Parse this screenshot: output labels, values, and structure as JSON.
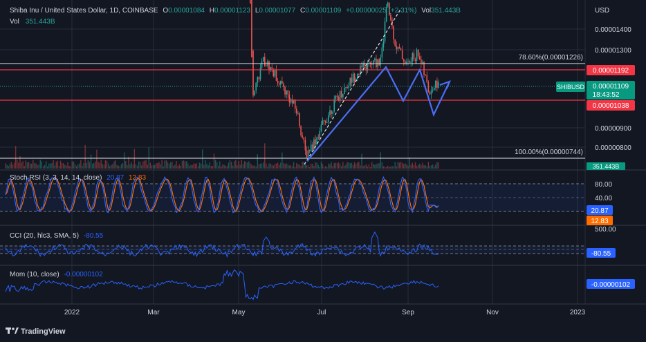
{
  "header": {
    "symbol": "Shiba Inu / United States Dollar, 1D, COINBASE",
    "open_label": "O",
    "open": "0.00001084",
    "high_label": "H",
    "high": "0.00001123",
    "low_label": "L",
    "low": "0.00001077",
    "close_label": "C",
    "close": "0.00001109",
    "change": "+0.00000025 (+2.31%)",
    "vol_label": "Vol",
    "vol": "351.443B",
    "vol_row_label": "Vol",
    "vol_row_value": "351.443B"
  },
  "price_axis": {
    "unit": "USD",
    "ticks": [
      "0.00001400",
      "0.00001300",
      "0.00000900",
      "0.00000800"
    ]
  },
  "levels": {
    "fib_786_label": "78.60%(0.00001226)",
    "fib_100_label": "100.00%(0.00000744)",
    "resistance_tag": "0.00001192",
    "support_tag": "0.00001038",
    "symbol_tag": "SHIBUSD",
    "price_tag": "0.00001109",
    "countdown": "18:43:52",
    "volume_tag": "351.443B"
  },
  "indicators": {
    "stoch": {
      "title": "Stoch RSI (3, 3, 14, 14, close)",
      "k": "20.87",
      "d": "12.83",
      "axis": [
        "80.00",
        "40.00"
      ],
      "k_tag": "20.87",
      "d_tag": "12.83"
    },
    "cci": {
      "title": "CCI (20, hlc3, SMA, 5)",
      "value": "-80.55",
      "axis": [
        "500.00"
      ],
      "tag": "-80.55"
    },
    "mom": {
      "title": "Mom (10, close)",
      "value": "-0.00000102",
      "tag": "-0.00000102"
    }
  },
  "time_axis": [
    "2022",
    "Mar",
    "May",
    "Jul",
    "Sep",
    "Nov",
    "2023"
  ],
  "branding": {
    "logo_text": "TradingView"
  },
  "colors": {
    "background": "#131722",
    "up": "#26a69a",
    "down": "#ef5350",
    "stoch_k": "#2962ff",
    "stoch_d": "#ff6d00",
    "cci": "#2962ff",
    "pattern": "#4c6ef5",
    "tag_red": "#f23645",
    "tag_green": "#089981",
    "tag_blue": "#2962ff",
    "tag_orange": "#f7525f"
  },
  "chart_data": {
    "type": "candlestick",
    "title": "Shiba Inu / United States Dollar, 1D, COINBASE",
    "x_domain": [
      "2021-11-20",
      "2023-01-08"
    ],
    "visible_data_range": [
      "2021-11-20",
      "2022-09-19"
    ],
    "ylabel": "USD",
    "ylim": [
      7.2e-06,
      1.5e-05
    ],
    "horizontal_levels": [
      {
        "name": "78.60%",
        "value": 1.226e-05,
        "color": "#ffffff"
      },
      {
        "name": "resistance",
        "value": 1.192e-05,
        "color": "#f23645"
      },
      {
        "name": "support",
        "value": 1.038e-05,
        "color": "#f23645"
      },
      {
        "name": "100.00%",
        "value": 7.44e-06,
        "color": "#ffffff"
      }
    ],
    "last_close": 1.109e-05,
    "price_path": [
      {
        "date": "2022-05-10",
        "price": 1.85e-05
      },
      {
        "date": "2022-05-12",
        "price": 1.05e-05
      },
      {
        "date": "2022-05-20",
        "price": 1.25e-05
      },
      {
        "date": "2022-06-01",
        "price": 1.1e-05
      },
      {
        "date": "2022-06-12",
        "price": 9.5e-06
      },
      {
        "date": "2022-06-18",
        "price": 7.6e-06
      },
      {
        "date": "2022-06-25",
        "price": 8.2e-06
      },
      {
        "date": "2022-07-10",
        "price": 1.02e-05
      },
      {
        "date": "2022-07-25",
        "price": 1.18e-05
      },
      {
        "date": "2022-08-10",
        "price": 1.25e-05
      },
      {
        "date": "2022-08-14",
        "price": 1.68e-05
      },
      {
        "date": "2022-08-20",
        "price": 1.35e-05
      },
      {
        "date": "2022-08-28",
        "price": 1.22e-05
      },
      {
        "date": "2022-09-05",
        "price": 1.3e-05
      },
      {
        "date": "2022-09-12",
        "price": 1.06e-05
      },
      {
        "date": "2022-09-19",
        "price": 1.109e-05
      }
    ],
    "indicators": {
      "stoch_rsi": {
        "k": 20.87,
        "d": 12.83,
        "levels": [
          80,
          40
        ]
      },
      "cci": {
        "value": -80.55
      },
      "momentum": {
        "value": -1.02e-06
      }
    }
  }
}
